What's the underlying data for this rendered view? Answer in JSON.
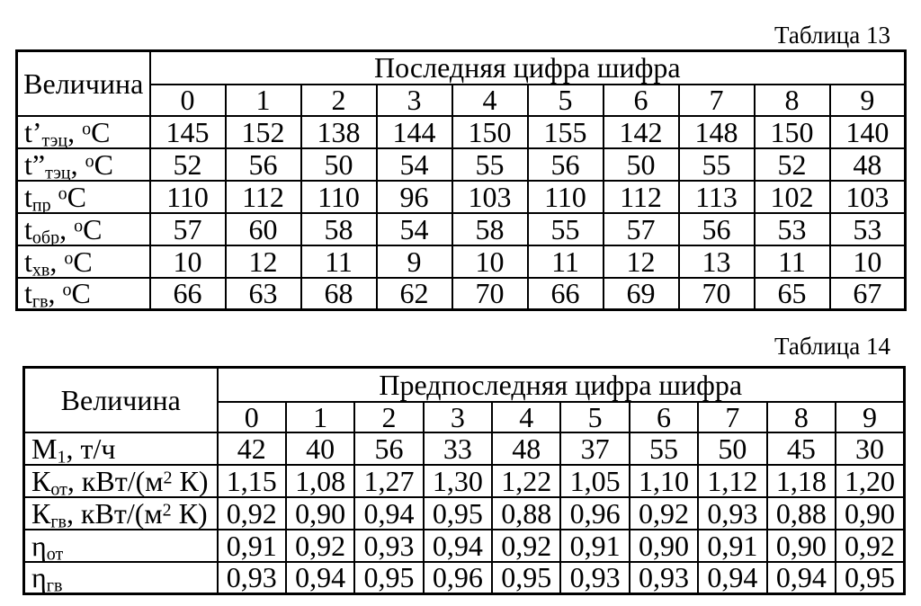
{
  "page": {
    "background": "#ffffff",
    "text_color": "#000000",
    "border_color": "#000000"
  },
  "table13": {
    "title": "Таблица 13",
    "corner_header": "Величина",
    "span_header": "Последняя цифра шифра",
    "digit_headers": [
      "0",
      "1",
      "2",
      "3",
      "4",
      "5",
      "6",
      "7",
      "8",
      "9"
    ],
    "rows": [
      {
        "label": {
          "pre": "t’",
          "sub": "тэц",
          "mid": ", ",
          "sup": "о",
          "post": "С"
        },
        "values": [
          "145",
          "152",
          "138",
          "144",
          "150",
          "155",
          "142",
          "148",
          "150",
          "140"
        ]
      },
      {
        "label": {
          "pre": "t”",
          "sub": "тэц",
          "mid": ", ",
          "sup": "о",
          "post": "С"
        },
        "values": [
          "52",
          "56",
          "50",
          "54",
          "55",
          "56",
          "50",
          "55",
          "52",
          "48"
        ]
      },
      {
        "label": {
          "pre": "t",
          "sub": "пр",
          "mid": " ",
          "sup": "о",
          "post": "С"
        },
        "values": [
          "110",
          "112",
          "110",
          "96",
          "103",
          "110",
          "112",
          "113",
          "102",
          "103"
        ]
      },
      {
        "label": {
          "pre": "t",
          "sub": "обр",
          "mid": ", ",
          "sup": "о",
          "post": "С"
        },
        "values": [
          "57",
          "60",
          "58",
          "54",
          "58",
          "55",
          "57",
          "56",
          "53",
          "53"
        ]
      },
      {
        "label": {
          "pre": "t",
          "sub": "хв",
          "mid": ", ",
          "sup": "о",
          "post": "С"
        },
        "values": [
          "10",
          "12",
          "11",
          "9",
          "10",
          "11",
          "12",
          "13",
          "11",
          "10"
        ]
      },
      {
        "label": {
          "pre": "t",
          "sub": "гв",
          "mid": ", ",
          "sup": "о",
          "post": "С"
        },
        "values": [
          "66",
          "63",
          "68",
          "62",
          "70",
          "66",
          "69",
          "70",
          "65",
          "67"
        ]
      }
    ]
  },
  "table14": {
    "title": "Таблица 14",
    "corner_header": "Величина",
    "span_header": "Предпоследняя цифра шифра",
    "digit_headers": [
      "0",
      "1",
      "2",
      "3",
      "4",
      "5",
      "6",
      "7",
      "8",
      "9"
    ],
    "rows": [
      {
        "label": {
          "pre": "М",
          "sub": "1",
          "mid": ", т/ч",
          "sup": "",
          "post": ""
        },
        "values": [
          "42",
          "40",
          "56",
          "33",
          "48",
          "37",
          "55",
          "50",
          "45",
          "30"
        ]
      },
      {
        "label": {
          "pre": "К",
          "sub": "от",
          "mid": ", кВт/(м",
          "sup": "2",
          "post": " К)"
        },
        "values": [
          "1,15",
          "1,08",
          "1,27",
          "1,30",
          "1,22",
          "1,05",
          "1,10",
          "1,12",
          "1,18",
          "1,20"
        ]
      },
      {
        "label": {
          "pre": "К",
          "sub": "гв",
          "mid": ", кВт/(м",
          "sup": "2",
          "post": " К)"
        },
        "values": [
          "0,92",
          "0,90",
          "0,94",
          "0,95",
          "0,88",
          "0,96",
          "0,92",
          "0,93",
          "0,88",
          "0,90"
        ]
      },
      {
        "label": {
          "pre": "η",
          "sub": "от",
          "mid": "",
          "sup": "",
          "post": ""
        },
        "values": [
          "0,91",
          "0,92",
          "0,93",
          "0,94",
          "0,92",
          "0,91",
          "0,90",
          "0,91",
          "0,90",
          "0,92"
        ]
      },
      {
        "label": {
          "pre": "η",
          "sub": "гв",
          "mid": "",
          "sup": "",
          "post": ""
        },
        "values": [
          "0,93",
          "0,94",
          "0,95",
          "0,96",
          "0,95",
          "0,93",
          "0,93",
          "0,94",
          "0,94",
          "0,95"
        ]
      }
    ]
  }
}
